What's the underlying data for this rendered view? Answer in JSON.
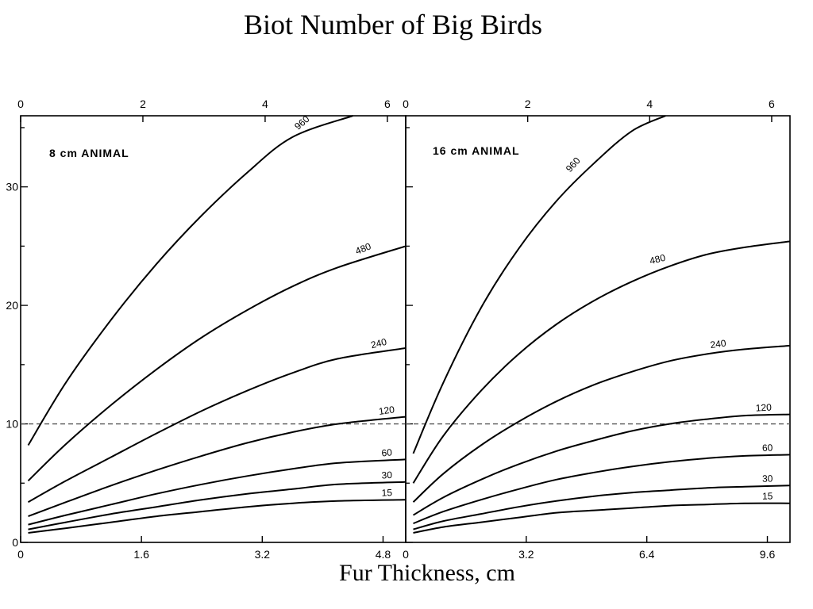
{
  "title": "Biot Number of Big Birds",
  "x_caption": "Fur Thickness, cm",
  "colors": {
    "ink": "#000000",
    "reference_line": "#555555"
  },
  "chart_data": [
    {
      "type": "line",
      "panel_label": "8 cm ANIMAL",
      "xlabel": "Fur Thickness, cm",
      "ylabel": "",
      "xlim": [
        0,
        5.1
      ],
      "ylim": [
        0,
        36
      ],
      "x_ticks": [
        0,
        1.6,
        3.2,
        4.8
      ],
      "x_tick_labels": [
        "0",
        "1.6",
        "3.2",
        "4.8"
      ],
      "top_axis": {
        "lim": [
          0,
          6.3
        ],
        "ticks": [
          0,
          2,
          4,
          6
        ],
        "tick_labels": [
          "0",
          "2",
          "4",
          "6"
        ]
      },
      "y_ticks": [
        0,
        10,
        20,
        30
      ],
      "y_tick_labels": [
        "0",
        "10",
        "20",
        "30"
      ],
      "reference_line_y": 10,
      "series": [
        {
          "name": "960",
          "x": [
            0.1,
            0.6,
            1.2,
            1.8,
            2.4,
            3.0,
            3.6,
            4.4
          ],
          "y": [
            8.2,
            13.5,
            18.8,
            23.5,
            27.6,
            31.2,
            34.2,
            36.0
          ]
        },
        {
          "name": "480",
          "x": [
            0.1,
            0.6,
            1.2,
            1.8,
            2.4,
            3.0,
            3.6,
            4.2,
            5.1
          ],
          "y": [
            5.2,
            8.3,
            11.6,
            14.6,
            17.3,
            19.6,
            21.6,
            23.2,
            25.0
          ]
        },
        {
          "name": "240",
          "x": [
            0.1,
            0.6,
            1.2,
            1.8,
            2.4,
            3.0,
            3.6,
            4.2,
            5.1
          ],
          "y": [
            3.4,
            5.2,
            7.2,
            9.2,
            11.1,
            12.8,
            14.3,
            15.5,
            16.4
          ]
        },
        {
          "name": "120",
          "x": [
            0.1,
            0.6,
            1.2,
            1.8,
            2.4,
            3.0,
            3.6,
            4.2,
            5.1
          ],
          "y": [
            2.2,
            3.4,
            4.8,
            6.1,
            7.3,
            8.4,
            9.3,
            10.0,
            10.6
          ]
        },
        {
          "name": "60",
          "x": [
            0.1,
            0.6,
            1.2,
            1.8,
            2.4,
            3.0,
            3.6,
            4.2,
            5.1
          ],
          "y": [
            1.5,
            2.3,
            3.2,
            4.1,
            4.9,
            5.6,
            6.2,
            6.7,
            7.0
          ]
        },
        {
          "name": "30",
          "x": [
            0.1,
            0.6,
            1.2,
            1.8,
            2.4,
            3.0,
            3.6,
            4.2,
            5.1
          ],
          "y": [
            1.1,
            1.7,
            2.4,
            3.0,
            3.6,
            4.1,
            4.5,
            4.9,
            5.1
          ]
        },
        {
          "name": "15",
          "x": [
            0.1,
            0.6,
            1.2,
            1.8,
            2.4,
            3.0,
            3.6,
            4.2,
            5.1
          ],
          "y": [
            0.8,
            1.2,
            1.7,
            2.2,
            2.6,
            3.0,
            3.3,
            3.5,
            3.6
          ]
        }
      ]
    },
    {
      "type": "line",
      "panel_label": "16 cm ANIMAL",
      "xlabel": "Fur Thickness, cm",
      "ylabel": "",
      "xlim": [
        0,
        10.2
      ],
      "ylim": [
        0,
        36
      ],
      "x_ticks": [
        0,
        3.2,
        6.4,
        9.6
      ],
      "x_tick_labels": [
        "0",
        "3.2",
        "6.4",
        "9.6"
      ],
      "top_axis": {
        "lim": [
          0,
          6.3
        ],
        "ticks": [
          0,
          2,
          4,
          6
        ],
        "tick_labels": [
          "0",
          "2",
          "4",
          "6"
        ]
      },
      "y_ticks": [
        0,
        10,
        20,
        30
      ],
      "y_tick_labels": [],
      "reference_line_y": 10,
      "series": [
        {
          "name": "960",
          "x": [
            0.2,
            1.0,
            2.0,
            3.0,
            4.0,
            5.0,
            6.0,
            6.9
          ],
          "y": [
            7.5,
            13.5,
            19.8,
            24.8,
            28.8,
            32.0,
            34.7,
            36.0
          ]
        },
        {
          "name": "480",
          "x": [
            0.2,
            1.0,
            2.0,
            3.0,
            4.0,
            5.0,
            6.0,
            7.0,
            8.0,
            9.0,
            10.2
          ],
          "y": [
            5.0,
            9.0,
            12.8,
            15.9,
            18.4,
            20.4,
            22.0,
            23.3,
            24.3,
            24.9,
            25.4
          ]
        },
        {
          "name": "240",
          "x": [
            0.2,
            1.0,
            2.0,
            3.0,
            4.0,
            5.0,
            6.0,
            7.0,
            8.0,
            9.0,
            10.2
          ],
          "y": [
            3.4,
            5.8,
            8.2,
            10.2,
            11.9,
            13.3,
            14.4,
            15.3,
            15.9,
            16.3,
            16.6
          ]
        },
        {
          "name": "120",
          "x": [
            0.2,
            1.0,
            2.0,
            3.0,
            4.0,
            5.0,
            6.0,
            7.0,
            8.0,
            9.0,
            10.2
          ],
          "y": [
            2.3,
            3.8,
            5.3,
            6.6,
            7.7,
            8.6,
            9.4,
            10.0,
            10.4,
            10.7,
            10.8
          ]
        },
        {
          "name": "60",
          "x": [
            0.2,
            1.0,
            2.0,
            3.0,
            4.0,
            5.0,
            6.0,
            7.0,
            8.0,
            9.0,
            10.2
          ],
          "y": [
            1.6,
            2.6,
            3.6,
            4.5,
            5.3,
            5.9,
            6.4,
            6.8,
            7.1,
            7.3,
            7.4
          ]
        },
        {
          "name": "30",
          "x": [
            0.2,
            1.0,
            2.0,
            3.0,
            4.0,
            5.0,
            6.0,
            7.0,
            8.0,
            9.0,
            10.2
          ],
          "y": [
            1.1,
            1.8,
            2.4,
            3.0,
            3.5,
            3.9,
            4.2,
            4.4,
            4.6,
            4.7,
            4.8
          ]
        },
        {
          "name": "15",
          "x": [
            0.2,
            1.0,
            2.0,
            3.0,
            4.0,
            5.0,
            6.0,
            7.0,
            8.0,
            9.0,
            10.2
          ],
          "y": [
            0.8,
            1.3,
            1.7,
            2.1,
            2.5,
            2.7,
            2.9,
            3.1,
            3.2,
            3.3,
            3.3
          ]
        }
      ]
    }
  ]
}
